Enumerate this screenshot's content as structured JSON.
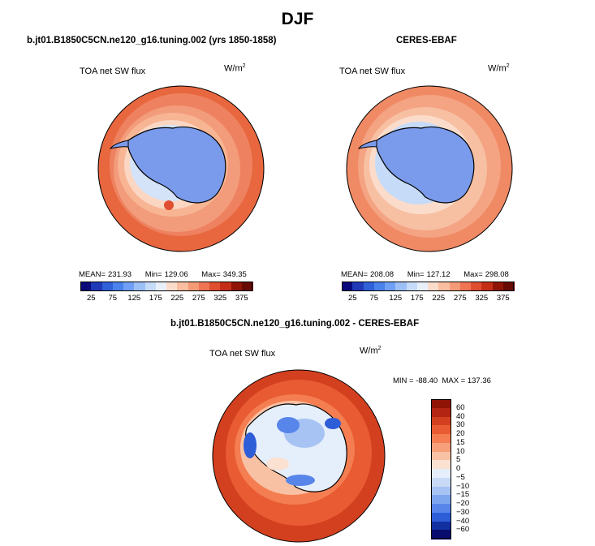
{
  "title": "DJF",
  "chart_data": [
    {
      "type": "heatmap",
      "projection": "south-polar-stereographic",
      "panel_title": "b.jt01.B1850C5CN.ne120_g16.tuning.002 (yrs 1850-1858)",
      "variable": "TOA net SW flux",
      "units": "W/m",
      "units_exp": "2",
      "stats": {
        "mean_label": "MEAN=",
        "mean": "231.93",
        "min_label": "Min=",
        "min": "129.06",
        "max_label": "Max=",
        "max": "349.35"
      },
      "colorbar": {
        "orientation": "horizontal",
        "tick_labels": [
          "25",
          "75",
          "125",
          "175",
          "225",
          "275",
          "325",
          "375"
        ],
        "levels": [
          25,
          50,
          75,
          100,
          125,
          150,
          175,
          200,
          225,
          250,
          275,
          300,
          325,
          350,
          375
        ]
      }
    },
    {
      "type": "heatmap",
      "projection": "south-polar-stereographic",
      "panel_title": "CERES-EBAF",
      "variable": "TOA net SW flux",
      "units": "W/m",
      "units_exp": "2",
      "stats": {
        "mean_label": "MEAN=",
        "mean": "208.08",
        "min_label": "Min=",
        "min": "127.12",
        "max_label": "Max=",
        "max": "298.08"
      },
      "colorbar": {
        "orientation": "horizontal",
        "tick_labels": [
          "25",
          "75",
          "125",
          "175",
          "225",
          "275",
          "325",
          "375"
        ],
        "levels": [
          25,
          50,
          75,
          100,
          125,
          150,
          175,
          200,
          225,
          250,
          275,
          300,
          325,
          350,
          375
        ]
      }
    },
    {
      "type": "heatmap",
      "projection": "south-polar-stereographic",
      "panel_title": "b.jt01.B1850C5CN.ne120_g16.tuning.002 - CERES-EBAF",
      "variable": "TOA net SW flux",
      "units": "W/m",
      "units_exp": "2",
      "stats_text": "MIN = -88.40  MAX = 137.36",
      "colorbar": {
        "orientation": "vertical",
        "tick_labels": [
          "60",
          "40",
          "30",
          "20",
          "15",
          "10",
          "5",
          "0",
          "−5",
          "−10",
          "−15",
          "−20",
          "−30",
          "−40",
          "−60"
        ]
      }
    }
  ],
  "colors": {
    "abs_scale": [
      "#0a0a7a",
      "#1f39b8",
      "#3061d9",
      "#4a82ec",
      "#6fa0f5",
      "#9cbff6",
      "#c6dbf8",
      "#e9eff9",
      "#fbdccb",
      "#f9bd9f",
      "#f59a77",
      "#ee7453",
      "#e04e30",
      "#c42e17",
      "#8f1406",
      "#670a04"
    ],
    "diff_scale": [
      "#8f1406",
      "#b32412",
      "#d3401f",
      "#e95b32",
      "#f47e52",
      "#f7a07b",
      "#f9c1a3",
      "#fbe1d1",
      "#e5eefb",
      "#c8daf6",
      "#a6c3f3",
      "#7ea6ef",
      "#5785ea",
      "#2e5dd8",
      "#12309f",
      "#080c6e"
    ],
    "land": "#7a9aeb",
    "coast": "#000000"
  }
}
